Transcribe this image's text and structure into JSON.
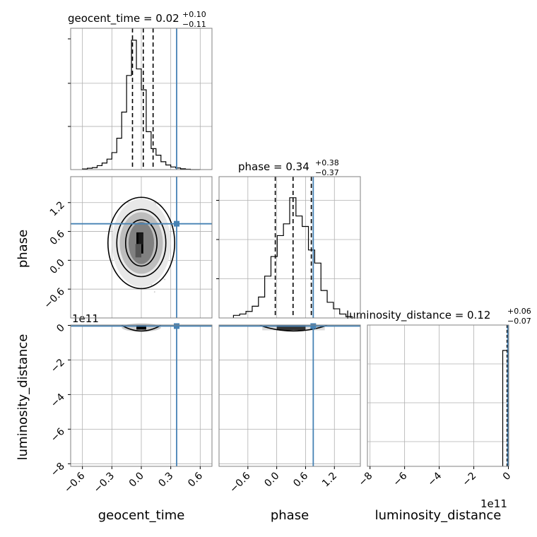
{
  "chart_data": {
    "type": "corner",
    "parameters": [
      "geocent_time",
      "phase",
      "luminosity_distance"
    ],
    "truths": {
      "geocent_time": 0.36,
      "phase": 0.76,
      "luminosity_distance": 0.0
    },
    "titles": [
      {
        "param": "geocent_time",
        "text": "geocent_time = 0.02",
        "plus": "+0.10",
        "minus": "−0.11"
      },
      {
        "param": "phase",
        "text": "phase = 0.34",
        "plus": "+0.38",
        "minus": "−0.37"
      },
      {
        "param": "luminosity_distance",
        "text": "luminosity_distance = 0.12",
        "plus": "+0.06",
        "minus": "−0.07"
      }
    ],
    "axis_labels": {
      "x": [
        "geocent_time",
        "phase",
        "luminosity_distance"
      ],
      "y": [
        "phase",
        "luminosity_distance"
      ]
    },
    "ticks": {
      "geocent_time": [
        "−0.6",
        "−0.3",
        "0.0",
        "0.3",
        "0.6"
      ],
      "phase": [
        "−0.6",
        "0.0",
        "0.6",
        "1.2"
      ],
      "luminosity_distance": [
        "−8",
        "−6",
        "−4",
        "−2",
        "0"
      ]
    },
    "offset_text": "1e11",
    "quantiles": {
      "geocent_time": [
        -0.09,
        0.02,
        0.12
      ],
      "phase": [
        -0.03,
        0.34,
        0.72
      ],
      "luminosity_distance": [
        0.05,
        0.12,
        0.18
      ]
    },
    "hist_geocent_time": {
      "edges": [
        -0.6,
        -0.55,
        -0.5,
        -0.45,
        -0.4,
        -0.35,
        -0.3,
        -0.25,
        -0.2,
        -0.15,
        -0.1,
        -0.05,
        0.0,
        0.05,
        0.1,
        0.15,
        0.2,
        0.25,
        0.3,
        0.35,
        0.4,
        0.45,
        0.5,
        0.55,
        0.6
      ],
      "counts": [
        0.005,
        0.01,
        0.015,
        0.03,
        0.05,
        0.08,
        0.13,
        0.24,
        0.44,
        0.72,
        0.99,
        0.77,
        0.61,
        0.29,
        0.16,
        0.11,
        0.06,
        0.035,
        0.02,
        0.012,
        0.006,
        0.003,
        0.0,
        0.0
      ]
    },
    "hist_phase": {
      "edges": [
        -0.9,
        -0.77,
        -0.64,
        -0.51,
        -0.38,
        -0.25,
        -0.12,
        0.01,
        0.14,
        0.27,
        0.4,
        0.53,
        0.66,
        0.79,
        0.92,
        1.05,
        1.18,
        1.31,
        1.44,
        1.57
      ],
      "counts": [
        0.02,
        0.03,
        0.05,
        0.09,
        0.16,
        0.32,
        0.47,
        0.63,
        0.72,
        0.92,
        0.78,
        0.7,
        0.52,
        0.42,
        0.21,
        0.12,
        0.07,
        0.03,
        0.01
      ]
    },
    "hist_luminosity_distance": {
      "spike_at": 0.0,
      "height": 0.82
    },
    "contour_levels": [
      {
        "cx": 0.0,
        "cy": 0.36,
        "rx": 0.16,
        "ry": 0.48
      },
      {
        "cx": 0.0,
        "cy": 0.36,
        "rx": 0.25,
        "ry": 0.7
      },
      {
        "cx": 0.0,
        "cy": 0.36,
        "rx": 0.34,
        "ry": 0.95
      }
    ],
    "colors": {
      "truth": "#4682b4",
      "hist": "#000000",
      "grid": "#b0b0b0",
      "scatter": "#808080"
    },
    "grid": true
  }
}
